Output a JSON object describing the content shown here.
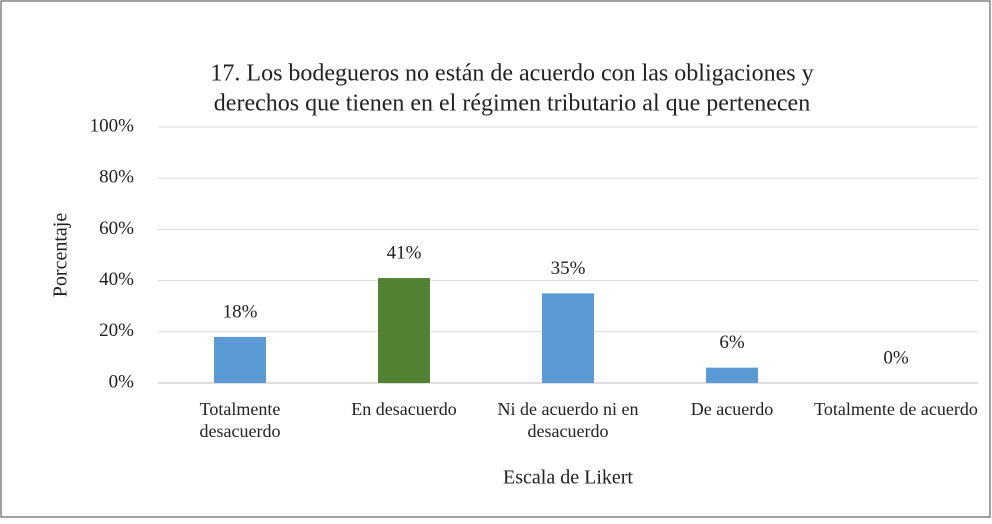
{
  "chart_data": {
    "type": "bar",
    "title": [
      "17. Los bodegueros no están de acuerdo con las obligaciones y",
      "derechos que tienen en el régimen tributario al que pertenecen"
    ],
    "xlabel": "Escala de Likert",
    "ylabel": "Porcentaje",
    "categories": [
      "Totalmente desacuerdo",
      "En desacuerdo",
      "Ni de acuerdo ni en desacuerdo",
      "De acuerdo",
      "Totalmente de acuerdo"
    ],
    "values": [
      18,
      41,
      35,
      6,
      0
    ],
    "value_labels": [
      "18%",
      "41%",
      "35%",
      "6%",
      "0%"
    ],
    "colors": [
      "#5b9bd5",
      "#548235",
      "#5b9bd5",
      "#5b9bd5",
      "#5b9bd5"
    ],
    "ylim": [
      0,
      100
    ],
    "yticks": [
      {
        "value": 0,
        "label": "0%"
      },
      {
        "value": 20,
        "label": "20%"
      },
      {
        "value": 40,
        "label": "40%"
      },
      {
        "value": 60,
        "label": "60%"
      },
      {
        "value": 80,
        "label": "80%"
      },
      {
        "value": 100,
        "label": "100%"
      }
    ],
    "grid": true
  }
}
